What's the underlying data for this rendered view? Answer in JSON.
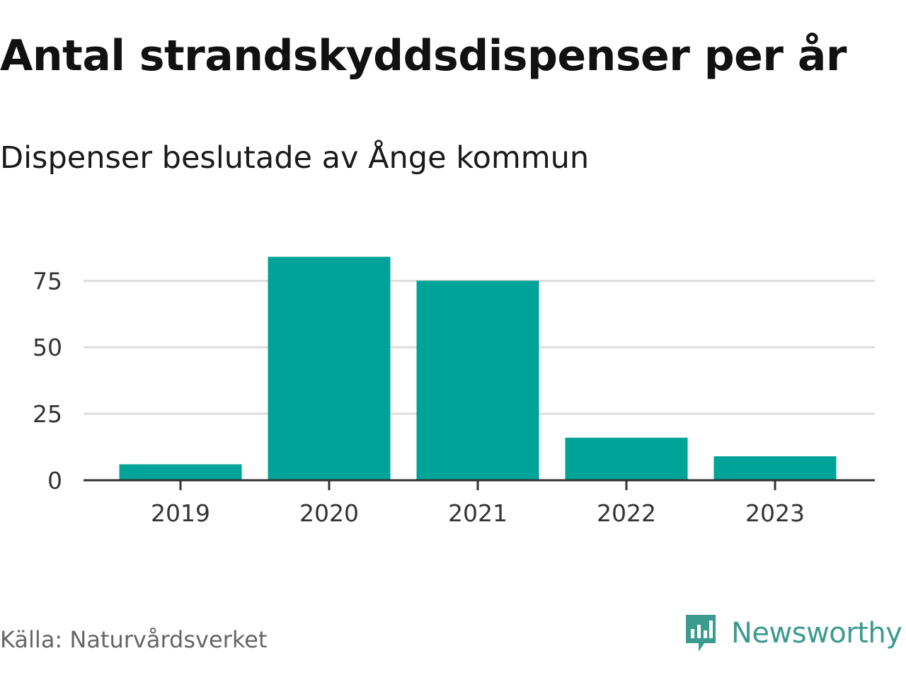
{
  "title": "Antal strandskyddsdispenser per år",
  "subtitle": "Dispenser beslutade av Ånge kommun",
  "source": "Källa: Naturvårdsverket",
  "brand": {
    "name": "Newsworthy",
    "icon": "newsworthy-logo-icon",
    "color": "#3b9b8e"
  },
  "chart_data": {
    "type": "bar",
    "title": "Antal strandskyddsdispenser per år",
    "subtitle": "Dispenser beslutade av Ånge kommun",
    "categories": [
      "2019",
      "2020",
      "2021",
      "2022",
      "2023"
    ],
    "values": [
      6,
      84,
      75,
      16,
      9
    ],
    "xlabel": "",
    "ylabel": "",
    "ylim": [
      0,
      90
    ],
    "yticks": [
      0,
      25,
      50,
      75
    ],
    "grid": true,
    "bar_color": "#00a398",
    "grid_color": "#dddddd",
    "axis_color": "#333333"
  }
}
